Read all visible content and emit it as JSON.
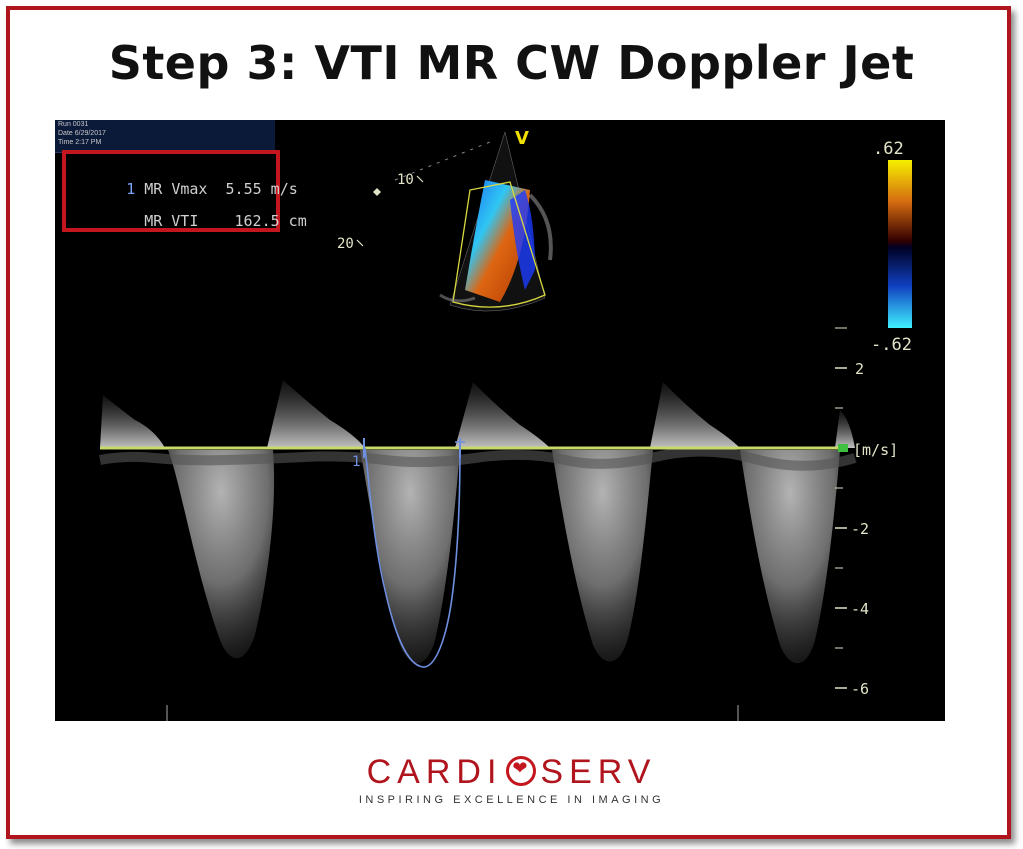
{
  "slide": {
    "title": "Step 3: VTI MR CW Doppler Jet"
  },
  "header_info": {
    "run": "Run 0031",
    "date": "Date 6/29/2017",
    "time": "Time 2:17 PM"
  },
  "measurements": [
    {
      "index": "1",
      "label": "MR Vmax",
      "value": "5.55 m/s"
    },
    {
      "index": "",
      "label": "MR VTI",
      "value": "162.5 cm"
    }
  ],
  "sector": {
    "marker": "V",
    "depth_labels": [
      "10",
      "20"
    ]
  },
  "color_scale": {
    "max": ".62",
    "min": "-.62"
  },
  "velocity_scale": {
    "unit": "[m/s]",
    "ticks": [
      "2",
      "-2",
      "-4",
      "-6"
    ]
  },
  "trace": {
    "label": "1"
  },
  "colors": {
    "frame": "#b0151d",
    "baseline": "#c8d86a",
    "trace": "#6f8fe0",
    "scale": "#e4e4c8"
  },
  "brand": {
    "part1": "CARDI",
    "part2": "SERV",
    "tagline": "INSPIRING EXCELLENCE IN IMAGING"
  }
}
